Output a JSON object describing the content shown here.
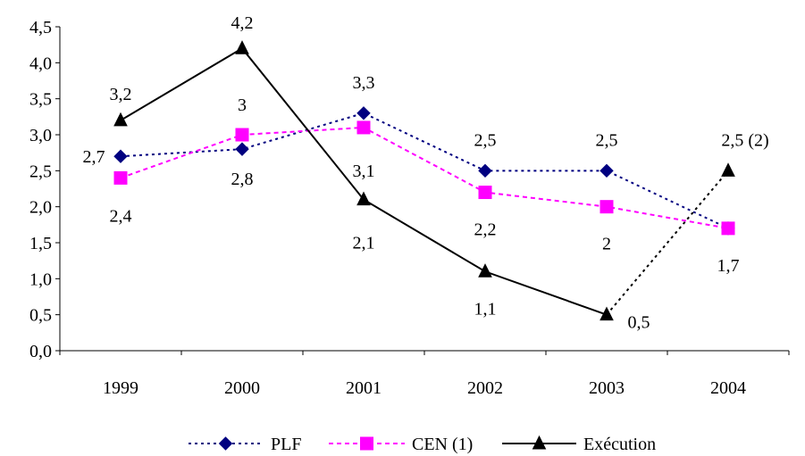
{
  "chart_data": {
    "type": "line",
    "title": "",
    "xlabel": "",
    "ylabel": "",
    "categories": [
      "1999",
      "2000",
      "2001",
      "2002",
      "2003",
      "2004"
    ],
    "ylim": [
      0,
      4.5
    ],
    "yticks": [
      0,
      0.5,
      1.0,
      1.5,
      2.0,
      2.5,
      3.0,
      3.5,
      4.0,
      4.5
    ],
    "ytick_labels": [
      "0,0",
      "0,5",
      "1,0",
      "1,5",
      "2,0",
      "2,5",
      "3,0",
      "3,5",
      "4,0",
      "4,5"
    ],
    "grid": false,
    "legend_position": "bottom",
    "series": [
      {
        "name": "PLF",
        "values": [
          2.7,
          2.8,
          3.3,
          2.5,
          2.5,
          1.7
        ],
        "labels": [
          "2,7",
          "2,8",
          "3,3",
          "2,5",
          "2,5",
          ""
        ],
        "color": "#000080",
        "marker": "diamond",
        "line_style": "dotted"
      },
      {
        "name": "CEN (1)",
        "values": [
          2.4,
          3.0,
          3.1,
          2.2,
          2.0,
          1.7
        ],
        "labels": [
          "2,4",
          "3",
          "3,1",
          "2,2",
          "2",
          "1,7"
        ],
        "color": "#ff00ff",
        "marker": "square",
        "line_style": "dashed"
      },
      {
        "name": "Exécution",
        "values": [
          3.2,
          4.2,
          2.1,
          1.1,
          0.5,
          2.5
        ],
        "labels": [
          "3,2",
          "4,2",
          "2,1",
          "1,1",
          "0,5",
          "2,5 (2)"
        ],
        "color": "#000000",
        "marker": "triangle",
        "line_style": "solid",
        "last_segment_style": "dotted"
      }
    ]
  }
}
